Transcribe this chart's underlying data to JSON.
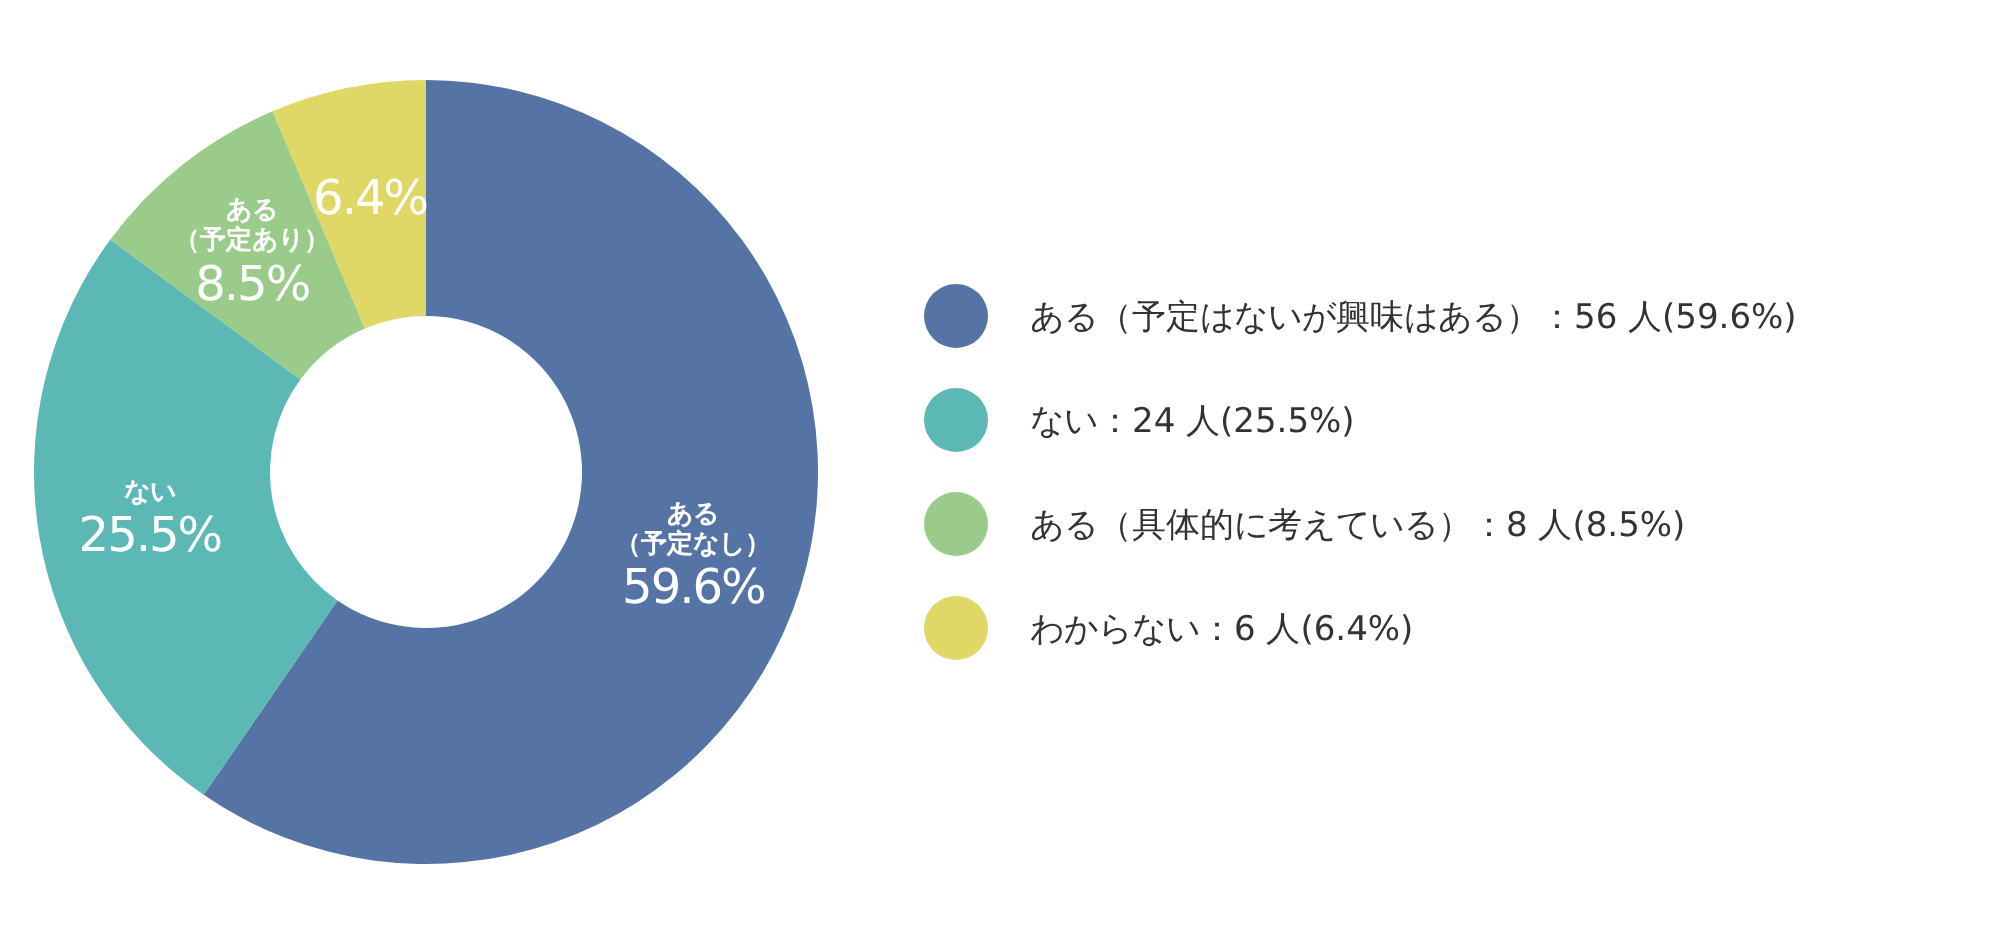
{
  "chart_data": {
    "type": "donut",
    "categories": [
      "ある（予定はないが興味はある）：56 人(59.6%)",
      "ない：24 人(25.5%)",
      "ある（具体的に考えている）：8 人(8.5%)",
      "わからない：6 人(6.4%)"
    ],
    "values": [
      59.6,
      25.5,
      8.5,
      6.4
    ],
    "colors": [
      "#5574a5",
      "#5bb8b4",
      "#9acb8b",
      "#dfd766"
    ],
    "value_labels": [
      "59.6%",
      "25.5%",
      "8.5%",
      "6.4%"
    ],
    "annotations": [
      {
        "text": "ある（予定なし）",
        "x": "ある（予定はないが興味はある）：56 人(59.6%)"
      },
      {
        "text": "ない",
        "x": "ない：24 人(25.5%)"
      },
      {
        "text": "ある（予定あり）",
        "x": "ある（具体的に考えている）：8 人(8.5%)"
      }
    ],
    "legend": "right"
  }
}
